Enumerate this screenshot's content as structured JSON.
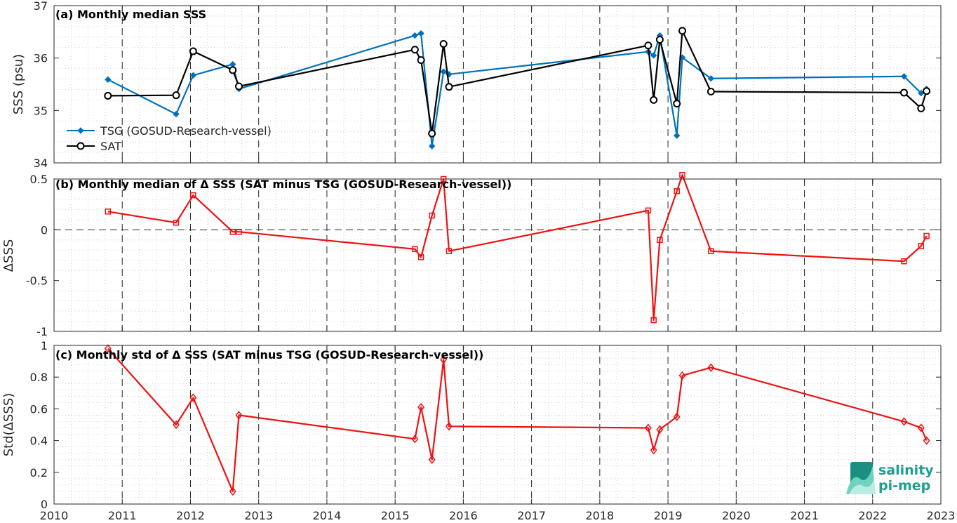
{
  "colors": {
    "tsg": "#0072bd",
    "sat": "#000000",
    "delta": "#ee1111",
    "axis": "#262626",
    "logo": "#1f9e8f"
  },
  "logo": {
    "line1": "salinity",
    "line2": "pi-mep"
  },
  "chart_data": [
    {
      "type": "line",
      "title": "(a) Monthly median SSS",
      "ylabel": "SSS (psu)",
      "xlabel": "",
      "xlim": [
        2010,
        2023
      ],
      "ylim": [
        34,
        37
      ],
      "yticks": [
        34,
        35,
        36,
        37
      ],
      "yticklabels": [
        "34",
        "35",
        "36",
        "37"
      ],
      "grid": true,
      "legend_position": "lower-left",
      "legend": [
        "TSG (GOSUD-Research-vessel)",
        "SAT"
      ],
      "series": [
        {
          "name": "TSG (GOSUD-Research-vessel)",
          "marker": "diamond-filled",
          "x": [
            2010.79,
            2011.79,
            2012.04,
            2012.62,
            2012.71,
            2015.29,
            2015.38,
            2015.54,
            2015.71,
            2015.79,
            2018.71,
            2018.79,
            2018.88,
            2019.13,
            2019.21,
            2019.63,
            2022.46,
            2022.71,
            2022.79
          ],
          "y": [
            35.59,
            34.93,
            35.67,
            35.88,
            35.41,
            36.43,
            36.47,
            34.32,
            35.74,
            35.69,
            36.12,
            36.05,
            36.43,
            34.52,
            36.01,
            35.61,
            35.65,
            35.33,
            35.41
          ]
        },
        {
          "name": "SAT",
          "marker": "circle-open",
          "x": [
            2010.79,
            2011.79,
            2012.04,
            2012.62,
            2012.71,
            2015.29,
            2015.38,
            2015.54,
            2015.71,
            2015.79,
            2018.71,
            2018.79,
            2018.88,
            2019.13,
            2019.21,
            2019.63,
            2022.46,
            2022.71,
            2022.79
          ],
          "y": [
            35.28,
            35.29,
            36.13,
            35.77,
            35.46,
            36.16,
            35.96,
            34.56,
            36.27,
            35.45,
            36.24,
            35.2,
            36.35,
            35.13,
            36.52,
            35.36,
            35.34,
            35.04,
            35.37
          ]
        }
      ]
    },
    {
      "type": "line",
      "title": "(b) Monthly median of Δ SSS (SAT minus TSG (GOSUD-Research-vessel))",
      "ylabel": "ΔSSS",
      "xlabel": "",
      "xlim": [
        2010,
        2023
      ],
      "ylim": [
        -1,
        0.5
      ],
      "yticks": [
        -1,
        -0.5,
        0,
        0.5
      ],
      "yticklabels": [
        "-1",
        "-0.5",
        "0",
        "0.5"
      ],
      "grid": true,
      "reference_line": 0,
      "series": [
        {
          "marker": "square-open",
          "x": [
            2010.79,
            2011.79,
            2012.04,
            2012.62,
            2012.71,
            2015.29,
            2015.38,
            2015.54,
            2015.71,
            2015.79,
            2018.71,
            2018.79,
            2018.88,
            2019.13,
            2019.21,
            2019.63,
            2022.46,
            2022.71,
            2022.79
          ],
          "y": [
            0.18,
            0.07,
            0.34,
            -0.02,
            -0.02,
            -0.19,
            -0.27,
            0.14,
            0.5,
            -0.21,
            0.19,
            -0.89,
            -0.1,
            0.38,
            0.54,
            -0.21,
            -0.31,
            -0.16,
            -0.06
          ]
        }
      ]
    },
    {
      "type": "line",
      "title": "(c) Monthly std of Δ SSS (SAT minus TSG (GOSUD-Research-vessel))",
      "ylabel": "Std(ΔSSS)",
      "xlabel": "",
      "xlim": [
        2010,
        2023
      ],
      "ylim": [
        0,
        1
      ],
      "yticks": [
        0,
        0.2,
        0.4,
        0.6,
        0.8,
        1
      ],
      "yticklabels": [
        "0",
        "0.2",
        "0.4",
        "0.6",
        "0.8",
        "1"
      ],
      "xticks": [
        2010,
        2011,
        2012,
        2013,
        2014,
        2015,
        2016,
        2017,
        2018,
        2019,
        2020,
        2021,
        2022,
        2023
      ],
      "xticklabels": [
        "2010",
        "2011",
        "2012",
        "2013",
        "2014",
        "2015",
        "2016",
        "2017",
        "2018",
        "2019",
        "2020",
        "2021",
        "2022",
        "2023"
      ],
      "grid": true,
      "series": [
        {
          "marker": "diamond-open",
          "x": [
            2010.79,
            2011.79,
            2012.04,
            2012.62,
            2012.71,
            2015.29,
            2015.38,
            2015.54,
            2015.71,
            2015.79,
            2018.71,
            2018.79,
            2018.88,
            2019.13,
            2019.21,
            2019.63,
            2022.46,
            2022.71,
            2022.79
          ],
          "y": [
            0.98,
            0.5,
            0.67,
            0.08,
            0.56,
            0.41,
            0.61,
            0.28,
            0.91,
            0.49,
            0.48,
            0.34,
            0.47,
            0.55,
            0.81,
            0.86,
            0.52,
            0.48,
            0.4
          ]
        }
      ]
    }
  ]
}
